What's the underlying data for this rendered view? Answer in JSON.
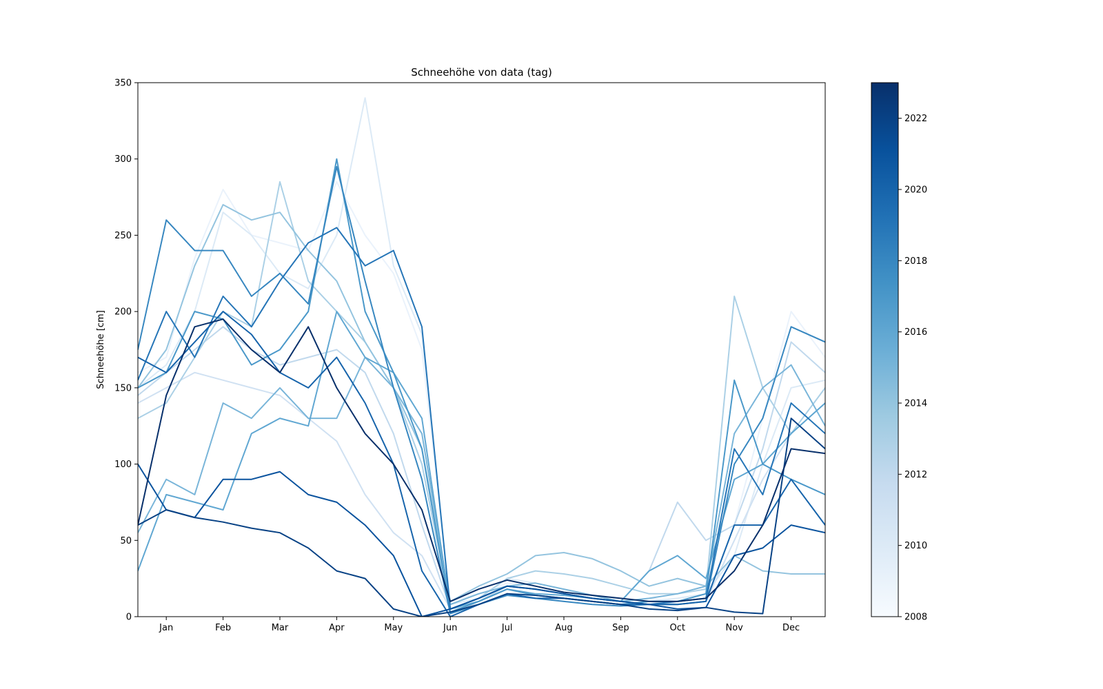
{
  "chart_data": {
    "type": "line",
    "title": "Schneehöhe von data (tag)",
    "ylabel": "Schneehöhe [cm]",
    "xlabel": "",
    "ylim": [
      0,
      350
    ],
    "yticks": [
      0,
      50,
      100,
      150,
      200,
      250,
      300,
      350
    ],
    "x_unit": "month",
    "xlim": [
      0.5,
      12.6
    ],
    "xticks": [
      {
        "label": "Jan",
        "x": 1
      },
      {
        "label": "Feb",
        "x": 2
      },
      {
        "label": "Mar",
        "x": 3
      },
      {
        "label": "Apr",
        "x": 4
      },
      {
        "label": "May",
        "x": 5
      },
      {
        "label": "Jun",
        "x": 6
      },
      {
        "label": "Jul",
        "x": 7
      },
      {
        "label": "Aug",
        "x": 8
      },
      {
        "label": "Sep",
        "x": 9
      },
      {
        "label": "Oct",
        "x": 10
      },
      {
        "label": "Nov",
        "x": 11
      },
      {
        "label": "Dec",
        "x": 12
      }
    ],
    "colorbar": {
      "colormap": "Blues",
      "range": [
        2008,
        2023
      ],
      "ticks": [
        2008,
        2010,
        2012,
        2014,
        2016,
        2018,
        2020,
        2022
      ],
      "colors": [
        "#f7fbff",
        "#deebf7",
        "#c6dbef",
        "#9ecae1",
        "#6baed6",
        "#4292c6",
        "#2171b5",
        "#08519c",
        "#08306b"
      ]
    },
    "grid": false,
    "series": [
      {
        "year": 2009,
        "x": [
          0.5,
          1,
          1.5,
          2,
          2.5,
          3,
          3.5,
          4,
          4.5,
          5,
          5.5,
          6,
          6.5,
          7,
          7.5,
          8,
          8.5,
          9,
          9.5,
          10,
          10.5,
          11,
          11.5,
          12,
          12.6
        ],
        "y": [
          160,
          170,
          235,
          280,
          250,
          245,
          240,
          285,
          250,
          225,
          175,
          10,
          15,
          22,
          20,
          15,
          12,
          10,
          12,
          10,
          12,
          60,
          130,
          200,
          170
        ]
      },
      {
        "year": 2010,
        "x": [
          0.5,
          1,
          1.5,
          2,
          2.5,
          3,
          3.5,
          4,
          4.5,
          5,
          5.5,
          6,
          6.5,
          7,
          7.5,
          8,
          8.5,
          9,
          9.5,
          10,
          10.5,
          11,
          11.5,
          12,
          12.6
        ],
        "y": [
          150,
          165,
          200,
          265,
          250,
          225,
          215,
          250,
          340,
          230,
          185,
          8,
          12,
          25,
          22,
          18,
          14,
          12,
          10,
          12,
          15,
          40,
          100,
          150,
          155
        ]
      },
      {
        "year": 2011,
        "x": [
          0.5,
          1,
          1.5,
          2,
          2.5,
          3,
          3.5,
          4,
          4.5,
          5,
          5.5,
          6,
          6.5,
          7,
          7.5,
          8,
          8.5,
          9,
          9.5,
          10,
          10.5,
          11,
          11.5,
          12,
          12.6
        ],
        "y": [
          140,
          150,
          160,
          155,
          150,
          145,
          130,
          115,
          80,
          55,
          40,
          5,
          8,
          15,
          14,
          12,
          10,
          8,
          10,
          8,
          10,
          50,
          90,
          120,
          140
        ]
      },
      {
        "year": 2012,
        "x": [
          0.5,
          1,
          1.5,
          2,
          2.5,
          3,
          3.5,
          4,
          4.5,
          5,
          5.5,
          6,
          6.5,
          7,
          7.5,
          8,
          8.5,
          9,
          9.5,
          10,
          10.5,
          11,
          11.5,
          12,
          12.6
        ],
        "y": [
          145,
          160,
          175,
          190,
          175,
          165,
          170,
          175,
          160,
          120,
          60,
          5,
          10,
          20,
          18,
          15,
          12,
          10,
          30,
          75,
          50,
          60,
          110,
          180,
          160
        ]
      },
      {
        "year": 2013,
        "x": [
          0.5,
          1,
          1.5,
          2,
          2.5,
          3,
          3.5,
          4,
          4.5,
          5,
          5.5,
          6,
          6.5,
          7,
          7.5,
          8,
          8.5,
          9,
          9.5,
          10,
          10.5,
          11,
          11.5,
          12,
          12.6
        ],
        "y": [
          130,
          140,
          170,
          200,
          190,
          285,
          220,
          200,
          180,
          150,
          100,
          5,
          12,
          25,
          30,
          28,
          25,
          20,
          15,
          15,
          18,
          210,
          150,
          120,
          150
        ]
      },
      {
        "year": 2014,
        "x": [
          0.5,
          1,
          1.5,
          2,
          2.5,
          3,
          3.5,
          4,
          4.5,
          5,
          5.5,
          6,
          6.5,
          7,
          7.5,
          8,
          8.5,
          9,
          9.5,
          10,
          10.5,
          11,
          11.5,
          12,
          12.6
        ],
        "y": [
          150,
          175,
          230,
          270,
          260,
          265,
          240,
          220,
          180,
          150,
          110,
          10,
          20,
          28,
          40,
          42,
          38,
          30,
          20,
          25,
          20,
          40,
          30,
          28,
          28
        ]
      },
      {
        "year": 2015,
        "x": [
          0.5,
          1,
          1.5,
          2,
          2.5,
          3,
          3.5,
          4,
          4.5,
          5,
          5.5,
          6,
          6.5,
          7,
          7.5,
          8,
          8.5,
          9,
          9.5,
          10,
          10.5,
          11,
          11.5,
          12,
          12.6
        ],
        "y": [
          55,
          90,
          80,
          140,
          130,
          150,
          130,
          130,
          170,
          150,
          120,
          8,
          15,
          20,
          22,
          18,
          14,
          10,
          12,
          15,
          20,
          120,
          150,
          165,
          125
        ]
      },
      {
        "year": 2016,
        "x": [
          0.5,
          1,
          1.5,
          2,
          2.5,
          3,
          3.5,
          4,
          4.5,
          5,
          5.5,
          6,
          6.5,
          7,
          7.5,
          8,
          8.5,
          9,
          9.5,
          10,
          10.5,
          11,
          11.5,
          12,
          12.6
        ],
        "y": [
          30,
          80,
          75,
          70,
          120,
          130,
          125,
          200,
          170,
          160,
          130,
          5,
          10,
          18,
          15,
          14,
          12,
          10,
          30,
          40,
          25,
          90,
          100,
          120,
          140
        ]
      },
      {
        "year": 2017,
        "x": [
          0.5,
          1,
          1.5,
          2,
          2.5,
          3,
          3.5,
          4,
          4.5,
          5,
          5.5,
          6,
          6.5,
          7,
          7.5,
          8,
          8.5,
          9,
          9.5,
          10,
          10.5,
          11,
          11.5,
          12,
          12.6
        ],
        "y": [
          150,
          160,
          200,
          195,
          165,
          175,
          200,
          300,
          200,
          160,
          110,
          3,
          10,
          18,
          14,
          12,
          10,
          8,
          10,
          10,
          15,
          155,
          100,
          90,
          80
        ]
      },
      {
        "year": 2018,
        "x": [
          0.5,
          1,
          1.5,
          2,
          2.5,
          3,
          3.5,
          4,
          4.5,
          5,
          5.5,
          6,
          6.5,
          7,
          7.5,
          8,
          8.5,
          9,
          9.5,
          10,
          10.5,
          11,
          11.5,
          12,
          12.6
        ],
        "y": [
          175,
          260,
          240,
          240,
          210,
          225,
          205,
          295,
          220,
          150,
          90,
          2,
          8,
          14,
          12,
          10,
          8,
          7,
          8,
          8,
          10,
          100,
          130,
          190,
          180
        ]
      },
      {
        "year": 2019,
        "x": [
          0.5,
          1,
          1.5,
          2,
          2.5,
          3,
          3.5,
          4,
          4.5,
          5,
          5.5,
          6,
          6.5,
          7,
          7.5,
          8,
          8.5,
          9,
          9.5,
          10,
          10.5,
          11,
          11.5,
          12,
          12.6
        ],
        "y": [
          155,
          200,
          170,
          210,
          190,
          220,
          245,
          255,
          230,
          240,
          190,
          5,
          12,
          20,
          18,
          15,
          12,
          10,
          8,
          10,
          12,
          110,
          80,
          140,
          120
        ]
      },
      {
        "year": 2020,
        "x": [
          0.5,
          1,
          1.5,
          2,
          2.5,
          3,
          3.5,
          4,
          4.5,
          5,
          5.5,
          6,
          6.5,
          7,
          7.5,
          8,
          8.5,
          9,
          9.5,
          10,
          10.5,
          11,
          11.5,
          12,
          12.6
        ],
        "y": [
          170,
          160,
          180,
          200,
          185,
          160,
          150,
          170,
          140,
          100,
          30,
          0,
          8,
          15,
          12,
          12,
          10,
          8,
          8,
          8,
          10,
          60,
          60,
          90,
          60
        ]
      },
      {
        "year": 2021,
        "x": [
          0.5,
          1,
          1.5,
          2,
          2.5,
          3,
          3.5,
          4,
          4.5,
          5,
          5.5,
          6,
          6.5,
          7,
          7.5,
          8,
          8.5,
          9,
          9.5,
          10,
          10.5,
          11,
          11.5,
          12,
          12.6
        ],
        "y": [
          100,
          70,
          65,
          90,
          90,
          95,
          80,
          75,
          60,
          40,
          0,
          5,
          12,
          20,
          18,
          15,
          12,
          10,
          8,
          5,
          6,
          40,
          45,
          60,
          55
        ]
      },
      {
        "year": 2022,
        "x": [
          0.5,
          1,
          1.5,
          2,
          2.5,
          3,
          3.5,
          4,
          4.5,
          5,
          5.5,
          6,
          6.5,
          7,
          7.5,
          8,
          8.5,
          9,
          9.5,
          10,
          10.5,
          11,
          11.5,
          12,
          12.6
        ],
        "y": [
          60,
          70,
          65,
          62,
          58,
          55,
          45,
          30,
          25,
          5,
          0,
          3,
          8,
          15,
          14,
          12,
          10,
          8,
          5,
          4,
          6,
          3,
          2,
          130,
          110
        ]
      },
      {
        "year": 2023,
        "x": [
          0.5,
          1,
          1.5,
          2,
          2.5,
          3,
          3.5,
          4,
          4.5,
          5,
          5.5,
          6,
          6.5,
          7,
          7.5,
          8,
          8.5,
          9,
          9.5,
          10,
          10.5,
          11,
          11.5,
          12,
          12.6
        ],
        "y": [
          60,
          145,
          190,
          195,
          175,
          160,
          190,
          150,
          120,
          100,
          70,
          10,
          18,
          24,
          20,
          16,
          14,
          12,
          10,
          10,
          12,
          30,
          60,
          110,
          107
        ]
      }
    ]
  }
}
